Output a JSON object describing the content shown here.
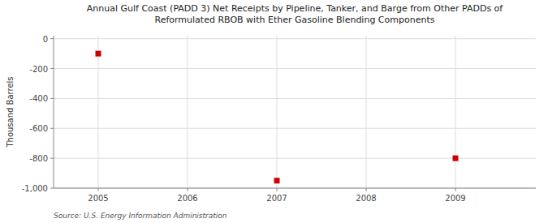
{
  "chart_data": {
    "type": "scatter",
    "title": "Annual Gulf Coast (PADD 3) Net Receipts by Pipeline, Tanker, and Barge from Other PADDs of\nReformulated RBOB with Ether Gasoline Blending Components",
    "ylabel": "Thousand Barrels",
    "source": "Source: U.S. Energy Information Administration",
    "x": [
      2005,
      2007,
      2009
    ],
    "values": [
      -100,
      -950,
      -800
    ],
    "color": "#cc0000",
    "marker": "square",
    "xlim": [
      2004.5,
      2009.9
    ],
    "ylim": [
      -1000,
      20
    ],
    "xticks": [
      2005,
      2006,
      2007,
      2008,
      2009
    ],
    "yticks": [
      0,
      -200,
      -400,
      -600,
      -800,
      {
        "value": -1000,
        "label": "-1,000"
      }
    ],
    "grid": true
  }
}
